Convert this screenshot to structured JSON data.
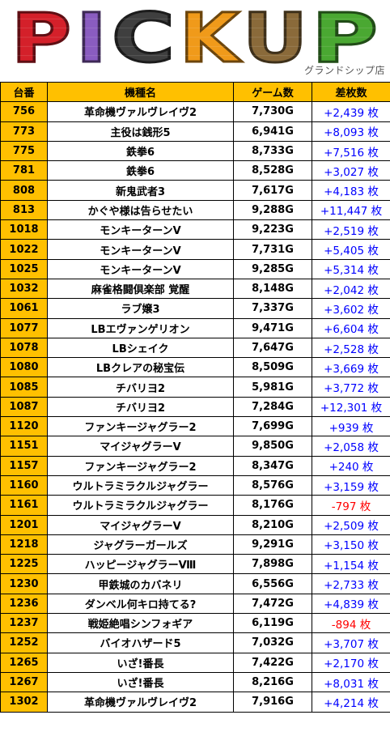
{
  "banner": {
    "logo_letters": [
      "P",
      "I",
      "C",
      "K",
      "U",
      "P"
    ],
    "logo_colors": [
      "#d4202a",
      "#8a5cc0",
      "#3f3f3f",
      "#f09a1a",
      "#8a6a3a",
      "#4aa832"
    ],
    "store_name": "グランドシップ店"
  },
  "table": {
    "headers": [
      "台番",
      "機種名",
      "ゲーム数",
      "差枚数"
    ],
    "colors": {
      "header_bg": "#ffc000",
      "positive": "#0000ff",
      "negative": "#ff0000"
    },
    "rows": [
      {
        "num": "756",
        "name": "革命機ヴァルヴレイヴ2",
        "games": "7,730G",
        "diff": "+2,439 枚",
        "sign": "pos"
      },
      {
        "num": "773",
        "name": "主役は銭形5",
        "games": "6,941G",
        "diff": "+8,093 枚",
        "sign": "pos"
      },
      {
        "num": "775",
        "name": "鉄拳6",
        "games": "8,733G",
        "diff": "+7,516 枚",
        "sign": "pos"
      },
      {
        "num": "781",
        "name": "鉄拳6",
        "games": "8,528G",
        "diff": "+3,027 枚",
        "sign": "pos"
      },
      {
        "num": "808",
        "name": "新鬼武者3",
        "games": "7,617G",
        "diff": "+4,183 枚",
        "sign": "pos"
      },
      {
        "num": "813",
        "name": "かぐや様は告らせたい",
        "games": "9,288G",
        "diff": "+11,447 枚",
        "sign": "pos"
      },
      {
        "num": "1018",
        "name": "モンキーターンV",
        "games": "9,223G",
        "diff": "+2,519 枚",
        "sign": "pos"
      },
      {
        "num": "1022",
        "name": "モンキーターンV",
        "games": "7,731G",
        "diff": "+5,405 枚",
        "sign": "pos"
      },
      {
        "num": "1025",
        "name": "モンキーターンV",
        "games": "9,285G",
        "diff": "+5,314 枚",
        "sign": "pos"
      },
      {
        "num": "1032",
        "name": "麻雀格闘倶楽部 覚醒",
        "games": "8,148G",
        "diff": "+2,042 枚",
        "sign": "pos"
      },
      {
        "num": "1061",
        "name": "ラブ嬢3",
        "games": "7,337G",
        "diff": "+3,602 枚",
        "sign": "pos"
      },
      {
        "num": "1077",
        "name": "LBエヴァンゲリオン",
        "games": "9,471G",
        "diff": "+6,604 枚",
        "sign": "pos"
      },
      {
        "num": "1078",
        "name": "LBシェイク",
        "games": "7,647G",
        "diff": "+2,528 枚",
        "sign": "pos"
      },
      {
        "num": "1080",
        "name": "LBクレアの秘宝伝",
        "games": "8,509G",
        "diff": "+3,669 枚",
        "sign": "pos"
      },
      {
        "num": "1085",
        "name": "チバリヨ2",
        "games": "5,981G",
        "diff": "+3,772 枚",
        "sign": "pos"
      },
      {
        "num": "1087",
        "name": "チバリヨ2",
        "games": "7,284G",
        "diff": "+12,301 枚",
        "sign": "pos"
      },
      {
        "num": "1120",
        "name": "ファンキージャグラー2",
        "games": "7,699G",
        "diff": "+939 枚",
        "sign": "pos"
      },
      {
        "num": "1151",
        "name": "マイジャグラーV",
        "games": "9,850G",
        "diff": "+2,058 枚",
        "sign": "pos"
      },
      {
        "num": "1157",
        "name": "ファンキージャグラー2",
        "games": "8,347G",
        "diff": "+240 枚",
        "sign": "pos"
      },
      {
        "num": "1160",
        "name": "ウルトラミラクルジャグラー",
        "games": "8,576G",
        "diff": "+3,159 枚",
        "sign": "pos"
      },
      {
        "num": "1161",
        "name": "ウルトラミラクルジャグラー",
        "games": "8,176G",
        "diff": "-797 枚",
        "sign": "neg"
      },
      {
        "num": "1201",
        "name": "マイジャグラーV",
        "games": "8,210G",
        "diff": "+2,509 枚",
        "sign": "pos"
      },
      {
        "num": "1218",
        "name": "ジャグラーガールズ",
        "games": "9,291G",
        "diff": "+3,150 枚",
        "sign": "pos"
      },
      {
        "num": "1225",
        "name": "ハッピージャグラーⅧ",
        "games": "7,898G",
        "diff": "+1,154 枚",
        "sign": "pos"
      },
      {
        "num": "1230",
        "name": "甲鉄城のカバネリ",
        "games": "6,556G",
        "diff": "+2,733 枚",
        "sign": "pos"
      },
      {
        "num": "1236",
        "name": "ダンベル何キロ持てる?",
        "games": "7,472G",
        "diff": "+4,839 枚",
        "sign": "pos"
      },
      {
        "num": "1237",
        "name": "戦姫絶唱シンフォギア",
        "games": "6,119G",
        "diff": "-894 枚",
        "sign": "neg"
      },
      {
        "num": "1252",
        "name": "バイオハザード5",
        "games": "7,032G",
        "diff": "+3,707 枚",
        "sign": "pos"
      },
      {
        "num": "1265",
        "name": "いざ!番長",
        "games": "7,422G",
        "diff": "+2,170 枚",
        "sign": "pos"
      },
      {
        "num": "1267",
        "name": "いざ!番長",
        "games": "8,216G",
        "diff": "+8,031 枚",
        "sign": "pos"
      },
      {
        "num": "1302",
        "name": "革命機ヴァルヴレイヴ2",
        "games": "7,916G",
        "diff": "+4,214 枚",
        "sign": "pos"
      }
    ]
  }
}
